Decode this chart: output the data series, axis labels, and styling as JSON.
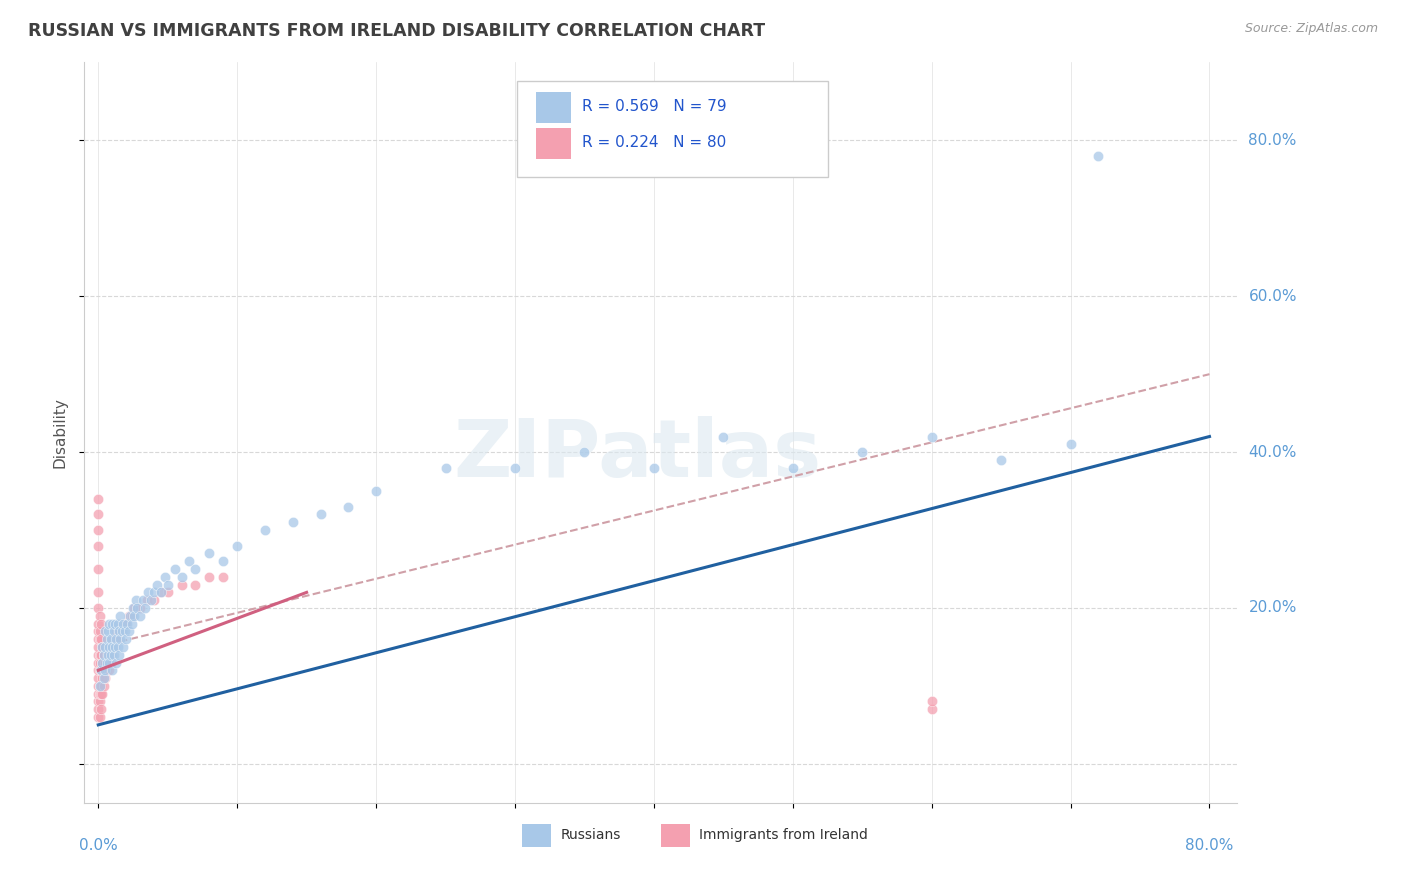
{
  "title": "RUSSIAN VS IMMIGRANTS FROM IRELAND DISABILITY CORRELATION CHART",
  "source": "Source: ZipAtlas.com",
  "ylabel": "Disability",
  "xlim": [
    0.0,
    0.8
  ],
  "ylim": [
    -0.05,
    0.9
  ],
  "blue_color": "#a8c8e8",
  "pink_color": "#f4a0b0",
  "blue_line_color": "#2060a0",
  "pink_line_color": "#d06080",
  "trend_dash_color": "#d0a0a8",
  "background_color": "#ffffff",
  "russians_x": [
    0.001,
    0.002,
    0.003,
    0.003,
    0.004,
    0.004,
    0.005,
    0.005,
    0.005,
    0.006,
    0.006,
    0.007,
    0.007,
    0.008,
    0.008,
    0.008,
    0.009,
    0.009,
    0.01,
    0.01,
    0.01,
    0.011,
    0.011,
    0.012,
    0.012,
    0.013,
    0.013,
    0.014,
    0.014,
    0.015,
    0.015,
    0.016,
    0.016,
    0.017,
    0.018,
    0.018,
    0.019,
    0.02,
    0.021,
    0.022,
    0.023,
    0.024,
    0.025,
    0.026,
    0.027,
    0.028,
    0.03,
    0.032,
    0.034,
    0.036,
    0.038,
    0.04,
    0.042,
    0.045,
    0.048,
    0.05,
    0.055,
    0.06,
    0.065,
    0.07,
    0.08,
    0.09,
    0.1,
    0.12,
    0.14,
    0.16,
    0.18,
    0.2,
    0.25,
    0.3,
    0.35,
    0.4,
    0.45,
    0.5,
    0.55,
    0.6,
    0.65,
    0.7,
    0.72
  ],
  "russians_y": [
    0.1,
    0.12,
    0.13,
    0.15,
    0.11,
    0.14,
    0.12,
    0.15,
    0.17,
    0.13,
    0.16,
    0.14,
    0.17,
    0.13,
    0.15,
    0.18,
    0.14,
    0.16,
    0.12,
    0.15,
    0.18,
    0.14,
    0.17,
    0.15,
    0.18,
    0.13,
    0.16,
    0.15,
    0.18,
    0.14,
    0.17,
    0.16,
    0.19,
    0.17,
    0.15,
    0.18,
    0.17,
    0.16,
    0.18,
    0.17,
    0.19,
    0.18,
    0.2,
    0.19,
    0.21,
    0.2,
    0.19,
    0.21,
    0.2,
    0.22,
    0.21,
    0.22,
    0.23,
    0.22,
    0.24,
    0.23,
    0.25,
    0.24,
    0.26,
    0.25,
    0.27,
    0.26,
    0.28,
    0.3,
    0.31,
    0.32,
    0.33,
    0.35,
    0.38,
    0.38,
    0.4,
    0.38,
    0.42,
    0.38,
    0.4,
    0.42,
    0.39,
    0.41,
    0.78
  ],
  "ireland_x": [
    0.0,
    0.0,
    0.0,
    0.0,
    0.0,
    0.0,
    0.0,
    0.0,
    0.0,
    0.0,
    0.0,
    0.0,
    0.0,
    0.0,
    0.0,
    0.0,
    0.0,
    0.0,
    0.0,
    0.0,
    0.001,
    0.001,
    0.001,
    0.001,
    0.001,
    0.001,
    0.001,
    0.001,
    0.001,
    0.001,
    0.002,
    0.002,
    0.002,
    0.002,
    0.002,
    0.002,
    0.002,
    0.003,
    0.003,
    0.003,
    0.003,
    0.004,
    0.004,
    0.004,
    0.005,
    0.005,
    0.006,
    0.006,
    0.007,
    0.007,
    0.008,
    0.008,
    0.009,
    0.01,
    0.01,
    0.011,
    0.012,
    0.013,
    0.014,
    0.015,
    0.016,
    0.017,
    0.018,
    0.019,
    0.02,
    0.022,
    0.024,
    0.026,
    0.028,
    0.03,
    0.035,
    0.04,
    0.045,
    0.05,
    0.06,
    0.07,
    0.08,
    0.09,
    0.6,
    0.6
  ],
  "ireland_y": [
    0.06,
    0.07,
    0.08,
    0.09,
    0.1,
    0.11,
    0.12,
    0.13,
    0.14,
    0.15,
    0.16,
    0.17,
    0.18,
    0.2,
    0.22,
    0.25,
    0.28,
    0.3,
    0.32,
    0.34,
    0.06,
    0.08,
    0.09,
    0.1,
    0.12,
    0.13,
    0.14,
    0.16,
    0.17,
    0.19,
    0.07,
    0.09,
    0.1,
    0.12,
    0.14,
    0.16,
    0.18,
    0.09,
    0.11,
    0.13,
    0.15,
    0.1,
    0.12,
    0.14,
    0.11,
    0.13,
    0.12,
    0.14,
    0.13,
    0.15,
    0.12,
    0.14,
    0.13,
    0.14,
    0.16,
    0.15,
    0.16,
    0.17,
    0.16,
    0.17,
    0.17,
    0.18,
    0.17,
    0.18,
    0.18,
    0.19,
    0.19,
    0.2,
    0.2,
    0.2,
    0.21,
    0.21,
    0.22,
    0.22,
    0.23,
    0.23,
    0.24,
    0.24,
    0.07,
    0.08
  ]
}
